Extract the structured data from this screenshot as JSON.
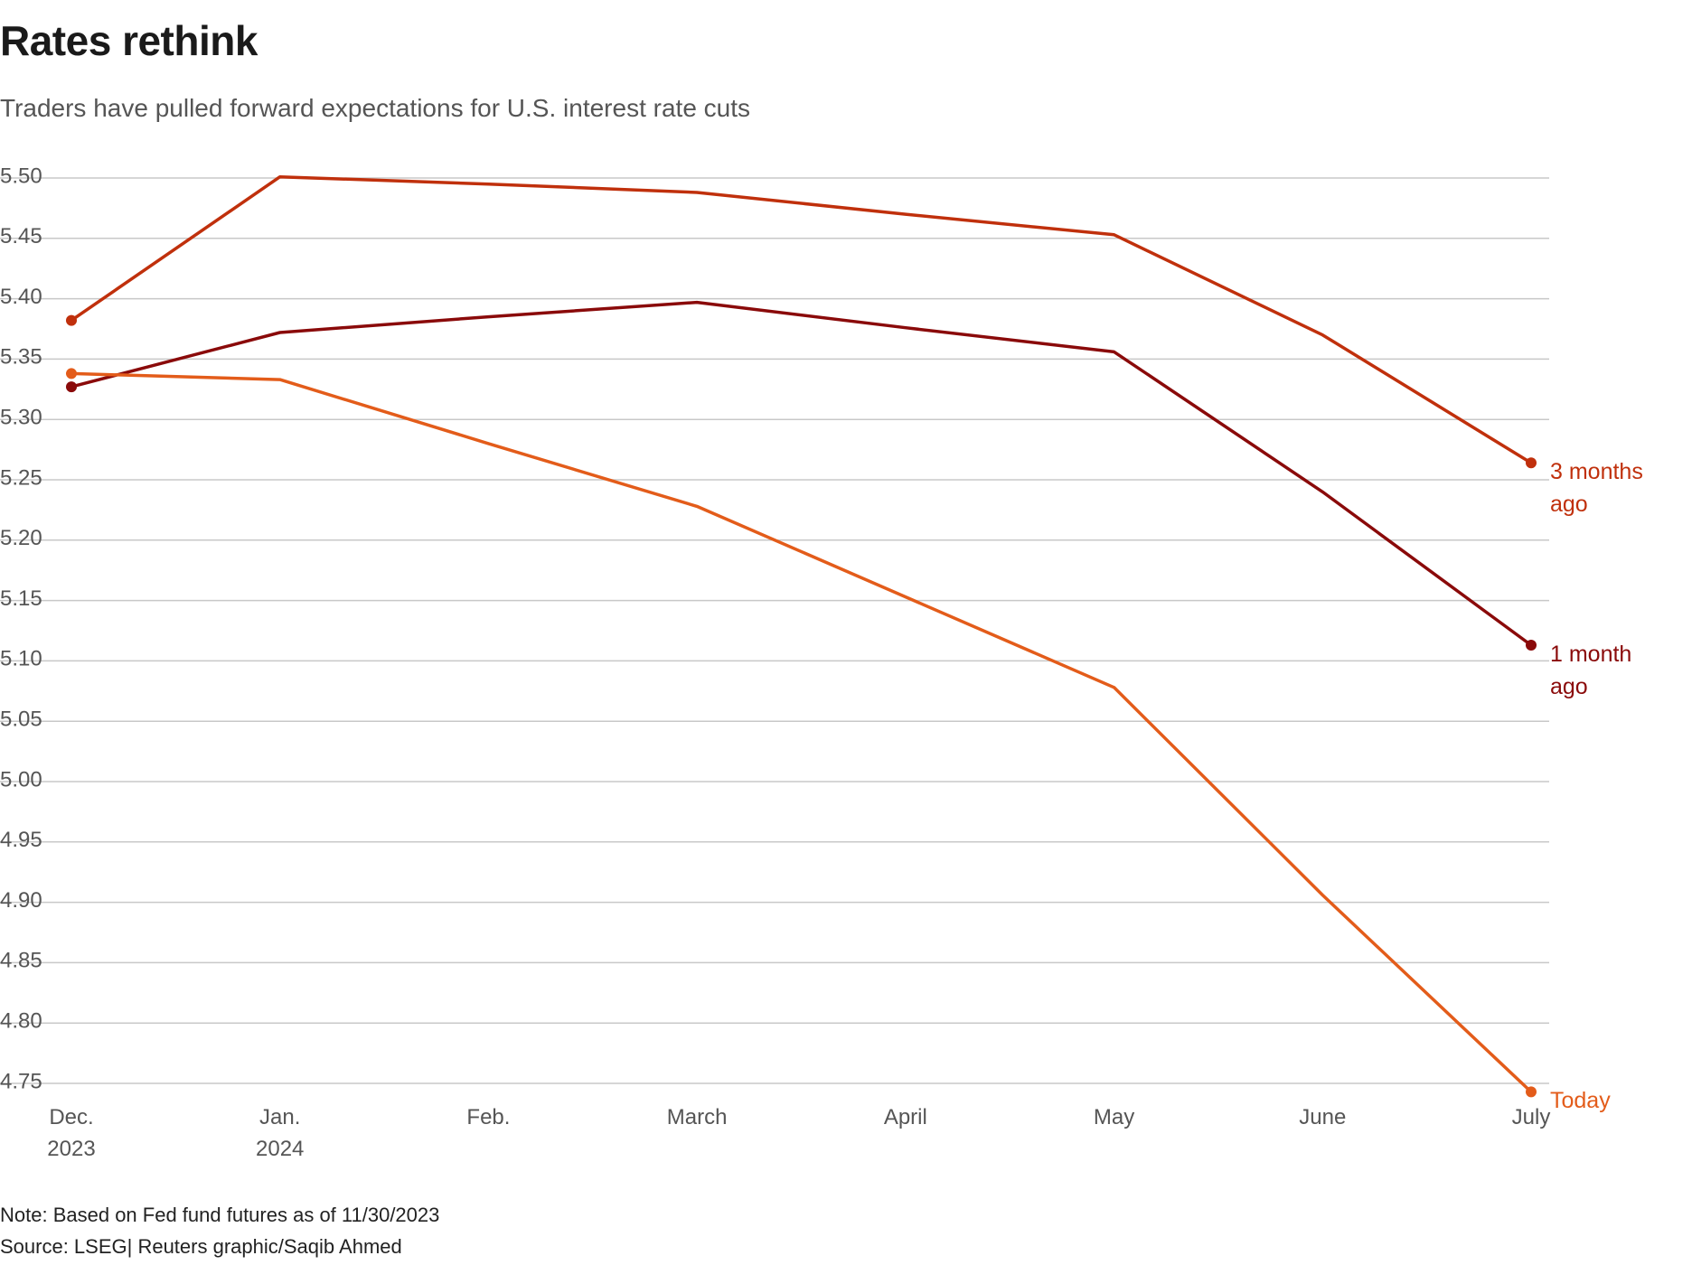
{
  "chart_data": {
    "type": "line",
    "title": "Rates rethink",
    "subtitle": "Traders have pulled forward expectations for U.S. interest rate cuts",
    "note": "Note: Based on Fed fund futures as of 11/30/2023",
    "source": "Source: LSEG| Reuters graphic/Saqib Ahmed",
    "categories": [
      "Dec. 2023",
      "Jan. 2024",
      "Feb.",
      "March",
      "April",
      "May",
      "June",
      "July"
    ],
    "series": [
      {
        "name": "3 months ago",
        "color": "#c0300c",
        "values": [
          5.382,
          5.501,
          5.495,
          5.488,
          5.47,
          5.453,
          5.37,
          5.264
        ]
      },
      {
        "name": "1 month ago",
        "color": "#8a0a0a",
        "values": [
          5.327,
          5.372,
          5.385,
          5.397,
          5.376,
          5.356,
          5.24,
          5.113
        ]
      },
      {
        "name": "Today",
        "color": "#e35c1a",
        "values": [
          5.338,
          5.333,
          5.28,
          5.228,
          5.153,
          5.078,
          4.906,
          4.743
        ]
      }
    ],
    "ylim": [
      4.75,
      5.5
    ],
    "yticks": [
      {
        "value": 5.5,
        "label": "5.50"
      },
      5.45,
      {
        "value": 5.4,
        "label": "5.40"
      },
      5.35,
      {
        "value": 5.3,
        "label": "5.30"
      },
      5.25,
      {
        "value": 5.2,
        "label": "5.20"
      },
      5.15,
      {
        "value": 5.1,
        "label": "5.10"
      },
      5.05,
      {
        "value": 5.0,
        "label": "5.00"
      },
      4.95,
      {
        "value": 4.9,
        "label": "4.90"
      },
      4.85,
      {
        "value": 4.8,
        "label": "4.80"
      },
      4.75
    ],
    "grid": true
  }
}
